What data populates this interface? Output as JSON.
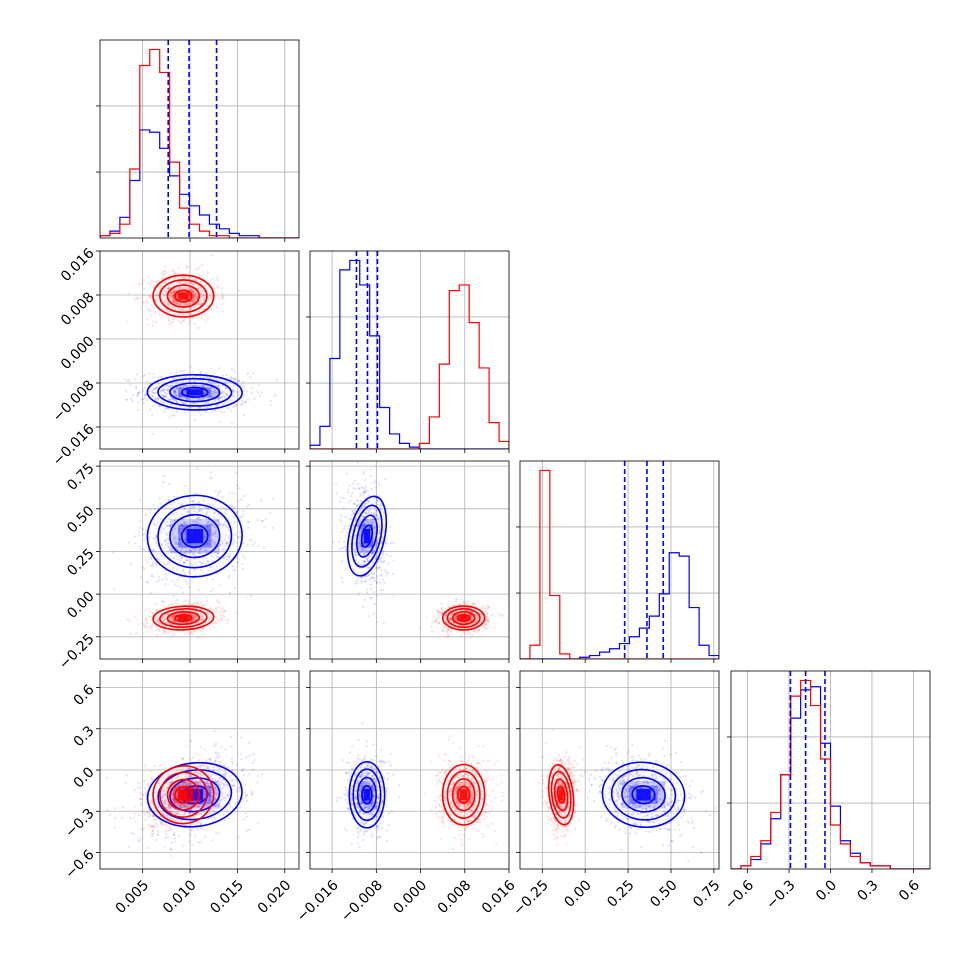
{
  "colors": {
    "blue": "#0000ff",
    "red": "#ff0000",
    "grid": "#b0b0b0"
  },
  "chart_data": {
    "type": "corner",
    "title": "",
    "variables": [
      {
        "range": [
          0.0005,
          0.0215
        ],
        "ticks": [
          0.005,
          0.01,
          0.015,
          0.02
        ],
        "tick_labels": [
          "0.005",
          "0.010",
          "0.015",
          "0.020"
        ]
      },
      {
        "range": [
          -0.02,
          0.016
        ],
        "ticks": [
          -0.016,
          -0.008,
          0.0,
          0.008,
          0.016
        ],
        "tick_labels": [
          "−0.016",
          "−0.008",
          "0.000",
          "0.008",
          "0.016"
        ]
      },
      {
        "range": [
          -0.38,
          0.78
        ],
        "ticks": [
          -0.25,
          0.0,
          0.25,
          0.5,
          0.75
        ],
        "tick_labels": [
          "−0.25",
          "0.00",
          "0.25",
          "0.50",
          "0.75"
        ]
      },
      {
        "range": [
          -0.72,
          0.72
        ],
        "ticks": [
          -0.6,
          -0.3,
          0.0,
          0.3,
          0.6
        ],
        "tick_labels": [
          "−0.6",
          "−0.3",
          "0.0",
          "0.3",
          "0.6"
        ]
      }
    ],
    "quantile_lines_blue": [
      [
        0.0077,
        0.0099,
        0.0128
      ],
      [
        -0.0116,
        -0.0096,
        -0.0078
      ],
      [
        0.23,
        0.36,
        0.455
      ],
      [
        -0.29,
        -0.18,
        -0.04
      ]
    ],
    "series": [
      {
        "color": "#0000ff",
        "means": [
          0.0105,
          -0.0097,
          0.34,
          -0.18
        ],
        "stds": [
          0.0025,
          0.0016,
          0.12,
          0.12
        ],
        "hist_bins": [
          [
            0.0005,
            0.0215,
            [
              1,
              3,
              9,
              25,
              47,
              46,
              39,
              27,
              19,
              14,
              10,
              6,
              4,
              2,
              1,
              1,
              0,
              0,
              0,
              0
            ]
          ],
          [
            -0.02,
            0.016,
            [
              2,
              12,
              48,
              95,
              100,
              87,
              60,
              22,
              8,
              3,
              1,
              0,
              0,
              0,
              0,
              0,
              0,
              0,
              0,
              0
            ]
          ],
          [
            -0.38,
            0.78,
            [
              0,
              0,
              0,
              0,
              0,
              0,
              1,
              2,
              4,
              6,
              9,
              13,
              18,
              25,
              38,
              62,
              60,
              30,
              8,
              2
            ]
          ],
          [
            -0.72,
            0.72,
            [
              0,
              1,
              3,
              8,
              16,
              30,
              48,
              57,
              58,
              40,
              20,
              9,
              5,
              2,
              1,
              1,
              0,
              0,
              0,
              0
            ]
          ]
        ]
      },
      {
        "color": "#ff0000",
        "means": [
          0.0093,
          0.0078,
          -0.14,
          -0.18
        ],
        "stds": [
          0.0016,
          0.0019,
          0.035,
          0.11
        ],
        "hist_bins": [
          [
            0.0005,
            0.0215,
            [
              1,
              2,
              6,
              30,
              75,
              82,
              72,
              33,
              13,
              6,
              3,
              1,
              1,
              0,
              0,
              0,
              0,
              0,
              0,
              0
            ]
          ],
          [
            -0.02,
            0.016,
            [
              0,
              0,
              0,
              0,
              0,
              0,
              0,
              0,
              0,
              0,
              0,
              3,
              17,
              45,
              84,
              87,
              67,
              43,
              14,
              4
            ]
          ],
          [
            -0.38,
            0.78,
            [
              0,
              8,
              110,
              37,
              3,
              0,
              0,
              0,
              0,
              0,
              0,
              0,
              0,
              0,
              0,
              0,
              0,
              0,
              0,
              0
            ]
          ],
          [
            -0.72,
            0.72,
            [
              0,
              1,
              4,
              9,
              18,
              30,
              55,
              60,
              52,
              35,
              14,
              8,
              4,
              2,
              1,
              1,
              0,
              0,
              0,
              0
            ]
          ]
        ]
      }
    ]
  }
}
